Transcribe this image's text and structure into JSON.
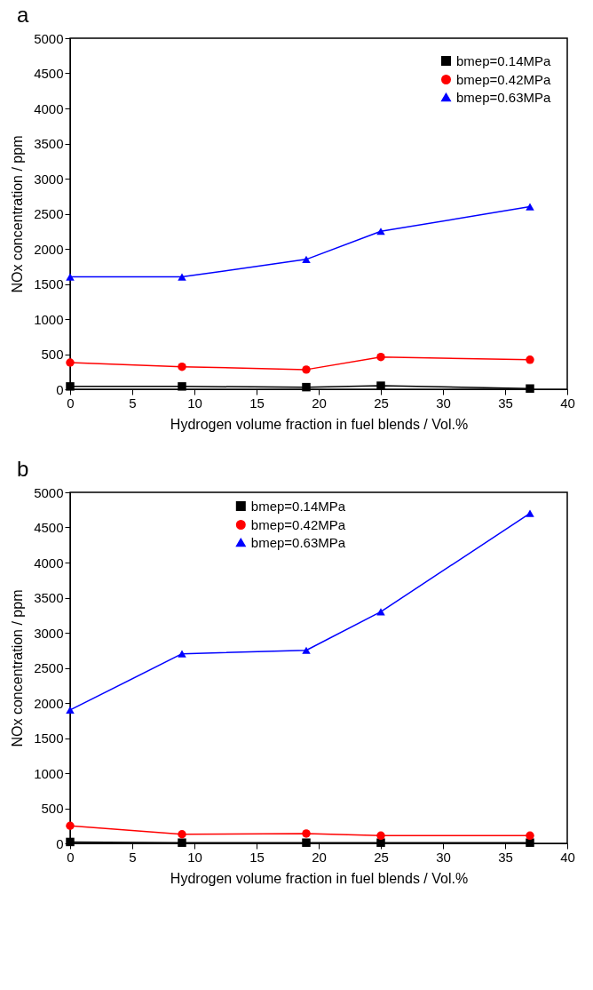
{
  "chart_data": [
    {
      "type": "line",
      "title": "a",
      "xlabel": "Hydrogen volume fraction in fuel blends / Vol.%",
      "ylabel": "NOx concentration / ppm",
      "x": [
        0,
        9,
        19,
        25,
        37
      ],
      "xlim": [
        0,
        40
      ],
      "xticks": [
        0,
        5,
        10,
        15,
        20,
        25,
        30,
        35,
        40
      ],
      "ylim": [
        0,
        5000
      ],
      "yticks": [
        0,
        500,
        1000,
        1500,
        2000,
        2500,
        3000,
        3500,
        4000,
        4500,
        5000
      ],
      "grid": false,
      "legend": "top right",
      "series": [
        {
          "name": "bmep=0.14MPa",
          "color": "#000000",
          "marker": "square",
          "values": [
            40,
            40,
            30,
            50,
            10
          ]
        },
        {
          "name": "bmep=0.42MPa",
          "color": "#ff0000",
          "marker": "circle",
          "values": [
            380,
            320,
            280,
            460,
            420
          ]
        },
        {
          "name": "bmep=0.63MPa",
          "color": "#0000ff",
          "marker": "triangle",
          "values": [
            1600,
            1600,
            1850,
            2250,
            2600
          ]
        }
      ]
    },
    {
      "type": "line",
      "title": "b",
      "xlabel": "Hydrogen volume fraction in fuel blends / Vol.%",
      "ylabel": "NOx concentration / ppm",
      "x": [
        0,
        9,
        19,
        25,
        37
      ],
      "xlim": [
        0,
        40
      ],
      "xticks": [
        0,
        5,
        10,
        15,
        20,
        25,
        30,
        35,
        40
      ],
      "ylim": [
        0,
        5000
      ],
      "yticks": [
        0,
        500,
        1000,
        1500,
        2000,
        2500,
        3000,
        3500,
        4000,
        4500,
        5000
      ],
      "grid": false,
      "legend": "top",
      "series": [
        {
          "name": "bmep=0.14MPa",
          "color": "#000000",
          "marker": "square",
          "values": [
            20,
            10,
            10,
            10,
            10
          ]
        },
        {
          "name": "bmep=0.42MPa",
          "color": "#ff0000",
          "marker": "circle",
          "values": [
            250,
            130,
            140,
            110,
            110
          ]
        },
        {
          "name": "bmep=0.63MPa",
          "color": "#0000ff",
          "marker": "triangle",
          "values": [
            1900,
            2700,
            2750,
            3300,
            4700
          ]
        }
      ]
    }
  ]
}
